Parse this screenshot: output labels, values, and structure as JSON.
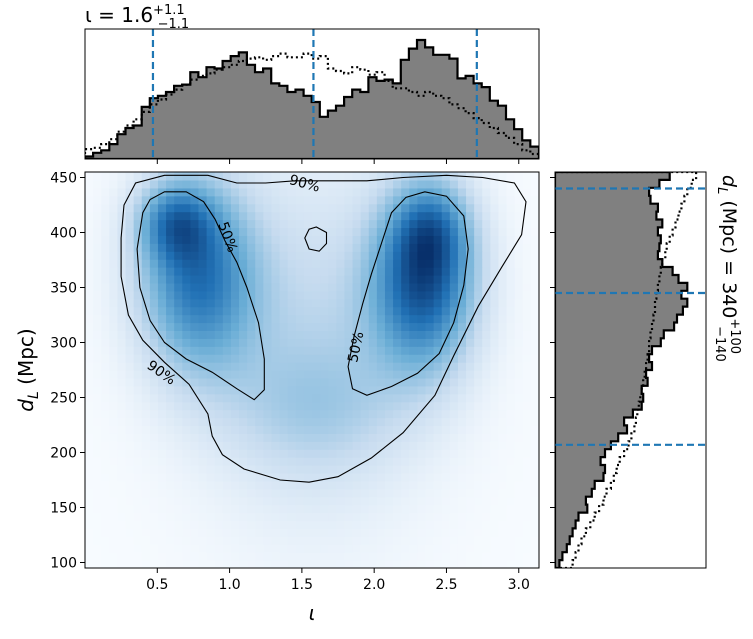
{
  "chart_data": [
    {
      "type": "heatmap",
      "panel": "joint",
      "xlabel": "ι",
      "ylabel": "d_L (Mpc)",
      "xlim": [
        0.0,
        3.14
      ],
      "ylim": [
        95,
        455
      ],
      "x_ticks": [
        "0.5",
        "1.0",
        "1.5",
        "2.0",
        "2.5",
        "3.0"
      ],
      "y_ticks": [
        "100",
        "150",
        "200",
        "250",
        "300",
        "350",
        "400",
        "450"
      ],
      "colormap": "Blues",
      "density_peaks": [
        {
          "x": 0.78,
          "y": 360,
          "sx": 0.28,
          "sy": 60,
          "w": 0.85
        },
        {
          "x": 0.62,
          "y": 410,
          "sx": 0.18,
          "sy": 25,
          "w": 0.55
        },
        {
          "x": 2.34,
          "y": 355,
          "sx": 0.25,
          "sy": 55,
          "w": 1.0
        },
        {
          "x": 2.4,
          "y": 405,
          "sx": 0.18,
          "sy": 30,
          "w": 0.45
        },
        {
          "x": 1.58,
          "y": 300,
          "sx": 0.55,
          "sy": 110,
          "w": 0.28
        },
        {
          "x": 1.6,
          "y": 240,
          "sx": 0.45,
          "sy": 40,
          "w": 0.18
        }
      ],
      "contours": [
        {
          "level": "50%",
          "paths": [
            [
              [
                0.4,
                418
              ],
              [
                0.45,
                430
              ],
              [
                0.55,
                437
              ],
              [
                0.7,
                437
              ],
              [
                0.82,
                428
              ],
              [
                0.9,
                412
              ],
              [
                0.97,
                392
              ],
              [
                1.05,
                373
              ],
              [
                1.12,
                350
              ],
              [
                1.2,
                318
              ],
              [
                1.24,
                285
              ],
              [
                1.24,
                257
              ],
              [
                1.17,
                248
              ],
              [
                1.05,
                258
              ],
              [
                0.88,
                273
              ],
              [
                0.7,
                285
              ],
              [
                0.55,
                300
              ],
              [
                0.45,
                320
              ],
              [
                0.38,
                350
              ],
              [
                0.36,
                385
              ],
              [
                0.4,
                418
              ]
            ],
            [
              [
                2.05,
                390
              ],
              [
                2.12,
                418
              ],
              [
                2.22,
                432
              ],
              [
                2.35,
                437
              ],
              [
                2.5,
                433
              ],
              [
                2.62,
                415
              ],
              [
                2.65,
                385
              ],
              [
                2.62,
                352
              ],
              [
                2.55,
                318
              ],
              [
                2.45,
                290
              ],
              [
                2.3,
                272
              ],
              [
                2.12,
                260
              ],
              [
                1.95,
                252
              ],
              [
                1.85,
                258
              ],
              [
                1.82,
                278
              ],
              [
                1.86,
                305
              ],
              [
                1.92,
                335
              ],
              [
                1.98,
                362
              ],
              [
                2.05,
                390
              ]
            ],
            [
              [
                1.52,
                395
              ],
              [
                1.55,
                403
              ],
              [
                1.6,
                405
              ],
              [
                1.67,
                400
              ],
              [
                1.67,
                390
              ],
              [
                1.62,
                383
              ],
              [
                1.55,
                385
              ],
              [
                1.52,
                395
              ]
            ]
          ],
          "labels": [
            {
              "text": "50%",
              "x": 0.99,
              "y": 396,
              "angle": 70
            },
            {
              "text": "50%",
              "x": 1.87,
              "y": 296,
              "angle": -78
            }
          ]
        },
        {
          "level": "90%",
          "paths": [
            [
              [
                0.25,
                395
              ],
              [
                0.27,
                425
              ],
              [
                0.35,
                445
              ],
              [
                0.55,
                452
              ],
              [
                0.85,
                452
              ],
              [
                1.05,
                445
              ],
              [
                1.25,
                445
              ],
              [
                1.45,
                447
              ],
              [
                1.7,
                447
              ],
              [
                1.95,
                447
              ],
              [
                2.2,
                450
              ],
              [
                2.5,
                452
              ],
              [
                2.75,
                450
              ],
              [
                2.97,
                445
              ],
              [
                3.05,
                428
              ],
              [
                3.02,
                398
              ],
              [
                2.88,
                368
              ],
              [
                2.72,
                333
              ],
              [
                2.55,
                288
              ],
              [
                2.42,
                252
              ],
              [
                2.2,
                218
              ],
              [
                1.98,
                195
              ],
              [
                1.75,
                178
              ],
              [
                1.55,
                173
              ],
              [
                1.35,
                175
              ],
              [
                1.1,
                185
              ],
              [
                0.95,
                198
              ],
              [
                0.88,
                215
              ],
              [
                0.85,
                235
              ],
              [
                0.72,
                262
              ],
              [
                0.55,
                282
              ],
              [
                0.4,
                302
              ],
              [
                0.3,
                325
              ],
              [
                0.25,
                360
              ],
              [
                0.25,
                395
              ]
            ]
          ],
          "labels": [
            {
              "text": "90%",
              "x": 1.52,
              "y": 445,
              "angle": 15
            },
            {
              "text": "90%",
              "x": 0.53,
              "y": 273,
              "angle": 35
            }
          ]
        }
      ]
    },
    {
      "type": "histogram",
      "panel": "top-marginal",
      "title": "ι = 1.6",
      "title_sup": "+1.1",
      "title_sub": "−1.1",
      "xlim": [
        0.0,
        3.14
      ],
      "bin_edges": [
        0.0,
        0.056,
        0.112,
        0.168,
        0.224,
        0.28,
        0.336,
        0.392,
        0.448,
        0.504,
        0.56,
        0.616,
        0.672,
        0.728,
        0.784,
        0.84,
        0.896,
        0.952,
        1.008,
        1.064,
        1.12,
        1.176,
        1.232,
        1.288,
        1.344,
        1.4,
        1.456,
        1.512,
        1.568,
        1.624,
        1.68,
        1.736,
        1.792,
        1.848,
        1.904,
        1.96,
        2.016,
        2.072,
        2.128,
        2.184,
        2.24,
        2.296,
        2.352,
        2.408,
        2.464,
        2.52,
        2.576,
        2.632,
        2.688,
        2.744,
        2.8,
        2.856,
        2.912,
        2.968,
        3.024,
        3.08,
        3.14
      ],
      "series": [
        {
          "style": "filled-step",
          "values": [
            0.02,
            0.05,
            0.07,
            0.12,
            0.2,
            0.25,
            0.27,
            0.42,
            0.49,
            0.51,
            0.54,
            0.59,
            0.6,
            0.7,
            0.66,
            0.74,
            0.73,
            0.79,
            0.83,
            0.86,
            0.76,
            0.7,
            0.73,
            0.61,
            0.59,
            0.54,
            0.56,
            0.51,
            0.46,
            0.34,
            0.39,
            0.43,
            0.5,
            0.56,
            0.54,
            0.66,
            0.63,
            0.64,
            0.61,
            0.8,
            0.89,
            0.96,
            0.9,
            0.84,
            0.84,
            0.81,
            0.65,
            0.67,
            0.61,
            0.58,
            0.47,
            0.43,
            0.32,
            0.24,
            0.15,
            0.1
          ]
        },
        {
          "style": "dotted-step",
          "values": [
            0.08,
            0.09,
            0.12,
            0.16,
            0.22,
            0.27,
            0.32,
            0.38,
            0.44,
            0.48,
            0.52,
            0.56,
            0.6,
            0.64,
            0.67,
            0.69,
            0.72,
            0.74,
            0.76,
            0.79,
            0.81,
            0.82,
            0.8,
            0.83,
            0.85,
            0.82,
            0.82,
            0.85,
            0.81,
            0.83,
            0.73,
            0.71,
            0.69,
            0.74,
            0.72,
            0.68,
            0.7,
            0.63,
            0.57,
            0.57,
            0.54,
            0.51,
            0.54,
            0.51,
            0.49,
            0.44,
            0.41,
            0.37,
            0.33,
            0.29,
            0.25,
            0.21,
            0.17,
            0.12,
            0.07,
            0.04
          ]
        }
      ],
      "quantile_lines": [
        0.47,
        1.58,
        2.71
      ]
    },
    {
      "type": "histogram",
      "panel": "right-marginal",
      "orientation": "horizontal",
      "ylabel": "d_L (Mpc) = 340",
      "ylabel_sup": "+100",
      "ylabel_sub": "−140",
      "ylim": [
        95,
        455
      ],
      "bin_edges": [
        95,
        102.2,
        109.4,
        116.6,
        123.8,
        131,
        138.2,
        145.4,
        152.6,
        159.8,
        167,
        174.2,
        181.4,
        188.6,
        195.8,
        203,
        210.2,
        217.4,
        224.6,
        231.8,
        239,
        246.2,
        253.4,
        260.6,
        267.8,
        275,
        282.2,
        289.4,
        296.6,
        303.8,
        311,
        318.2,
        325.4,
        332.6,
        339.8,
        347,
        354.2,
        361.4,
        368.6,
        375.8,
        383,
        390.2,
        397.4,
        404.6,
        411.8,
        419,
        426.2,
        433.4,
        440.6,
        447.8,
        455
      ],
      "series": [
        {
          "style": "filled-step",
          "values": [
            0.03,
            0.05,
            0.08,
            0.1,
            0.12,
            0.14,
            0.16,
            0.22,
            0.21,
            0.25,
            0.27,
            0.33,
            0.34,
            0.31,
            0.34,
            0.38,
            0.43,
            0.49,
            0.47,
            0.53,
            0.59,
            0.6,
            0.59,
            0.63,
            0.62,
            0.66,
            0.64,
            0.66,
            0.72,
            0.74,
            0.81,
            0.83,
            0.87,
            0.9,
            0.86,
            0.9,
            0.84,
            0.8,
            0.73,
            0.7,
            0.71,
            0.72,
            0.7,
            0.73,
            0.69,
            0.7,
            0.65,
            0.64,
            0.71,
            0.78
          ]
        },
        {
          "style": "dotted-step",
          "values": [
            0.12,
            0.14,
            0.16,
            0.18,
            0.21,
            0.24,
            0.27,
            0.3,
            0.33,
            0.35,
            0.38,
            0.4,
            0.42,
            0.44,
            0.47,
            0.5,
            0.52,
            0.54,
            0.55,
            0.56,
            0.57,
            0.58,
            0.59,
            0.6,
            0.61,
            0.62,
            0.63,
            0.64,
            0.64,
            0.65,
            0.66,
            0.67,
            0.68,
            0.68,
            0.69,
            0.7,
            0.71,
            0.72,
            0.73,
            0.75,
            0.76,
            0.78,
            0.8,
            0.82,
            0.84,
            0.86,
            0.88,
            0.9,
            0.93,
            0.96
          ]
        }
      ],
      "quantile_lines": [
        207,
        345,
        440
      ]
    }
  ],
  "colors": {
    "fill": "#808080",
    "quantile_line": "#1f77b4",
    "heat_low": "#f7fbff",
    "heat_high": "#08306b"
  }
}
